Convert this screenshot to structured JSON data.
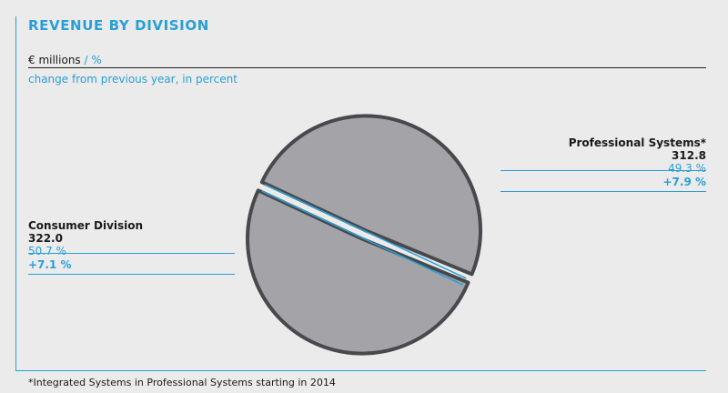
{
  "header": {
    "title": "REVENUE BY DIVISION",
    "units_main": "€ millions",
    "units_secondary": "/ %",
    "subtitle": "change from previous year, in percent"
  },
  "colors": {
    "accent": "#2a9fd6",
    "slice_fill": "#a3a3a8",
    "slice_stroke": "#48494d",
    "background": "#ebebeb"
  },
  "chart_data": {
    "type": "pie",
    "title": "REVENUE BY DIVISION",
    "unit": "€ millions / %",
    "slices": [
      {
        "name": "Consumer Division",
        "value": 322.0,
        "share": "50.7 %",
        "change": "+7.1 %"
      },
      {
        "name": "Professional Systems*",
        "value": 312.8,
        "share": "49.3 %",
        "change": "+7.9 %"
      }
    ],
    "exploded": true
  },
  "labels": {
    "consumer": {
      "name": "Consumer Division",
      "value": "322.0",
      "share": "50.7 %",
      "change": "+7.1 %"
    },
    "professional": {
      "name": "Professional Systems*",
      "value": "312.8",
      "share": "49.3 %",
      "change": "+7.9 %"
    }
  },
  "footnote": "*Integrated Systems in Professional Systems starting in 2014"
}
